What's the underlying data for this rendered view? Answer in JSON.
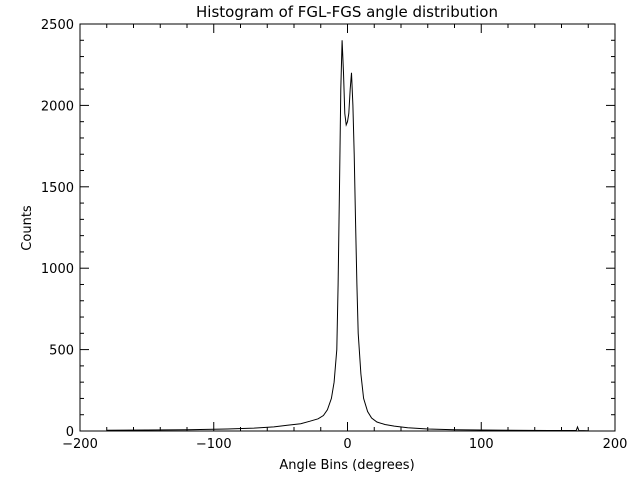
{
  "chart_data": {
    "type": "line",
    "title": "Histogram of FGL-FGS angle distribution",
    "xlabel": "Angle Bins (degrees)",
    "ylabel": "Counts",
    "xlim": [
      -200,
      200
    ],
    "ylim": [
      0,
      2500
    ],
    "xticks": [
      -200,
      -100,
      0,
      100,
      200
    ],
    "xtick_labels": [
      "−200",
      "−100",
      "0",
      "100",
      "200"
    ],
    "yticks": [
      0,
      500,
      1000,
      1500,
      2000,
      2500
    ],
    "ytick_labels": [
      "0",
      "500",
      "1000",
      "1500",
      "2000",
      "2500"
    ],
    "grid": false,
    "series": [
      {
        "x": [
          -180,
          -150,
          -120,
          -90,
          -70,
          -55,
          -45,
          -35,
          -28,
          -22,
          -18,
          -15,
          -12,
          -10,
          -8,
          -7,
          -6,
          -5,
          -4,
          -3,
          -2,
          -1,
          0,
          1,
          2,
          3,
          4,
          5,
          6,
          7,
          8,
          10,
          12,
          15,
          18,
          22,
          28,
          35,
          45,
          60,
          80,
          100,
          120,
          150,
          171,
          172,
          173,
          180
        ],
        "y": [
          5,
          6,
          8,
          12,
          18,
          25,
          35,
          45,
          60,
          75,
          95,
          130,
          200,
          300,
          500,
          900,
          1500,
          2100,
          2400,
          2200,
          1950,
          1880,
          1900,
          1950,
          2100,
          2200,
          2000,
          1700,
          1300,
          900,
          600,
          350,
          200,
          120,
          80,
          55,
          40,
          30,
          20,
          12,
          8,
          6,
          5,
          3,
          3,
          25,
          3,
          2
        ]
      }
    ]
  }
}
